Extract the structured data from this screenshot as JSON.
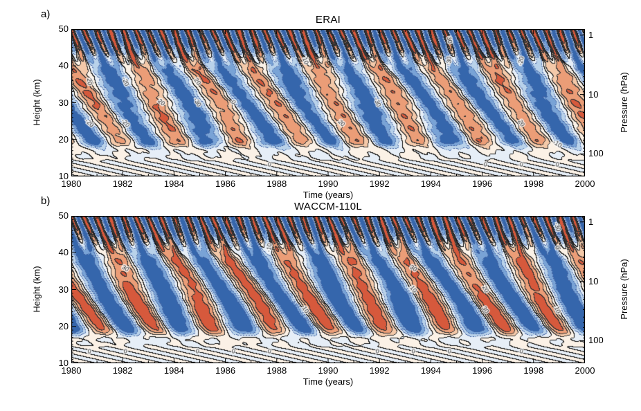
{
  "figure": {
    "background_color": "#ffffff",
    "panels": [
      {
        "id": "a",
        "corner_label": "a)",
        "title": "ERAI",
        "xlabel": "Time (years)",
        "ylabel_left": "Height (km)",
        "ylabel_right": "Pressure (hPa)",
        "x_tick_labels": [
          "1980",
          "1982",
          "1984",
          "1986",
          "1988",
          "1990",
          "1992",
          "1994",
          "1996",
          "1998",
          "2000"
        ],
        "y_tick_labels_km": [
          "10",
          "20",
          "30",
          "40",
          "50"
        ],
        "pressure_tick_labels_hpa": [
          "1",
          "10",
          "100"
        ]
      },
      {
        "id": "b",
        "corner_label": "b)",
        "title": "WACCM-110L",
        "xlabel": "Time (years)",
        "ylabel_left": "Height (km)",
        "ylabel_right": "Pressure (hPa)",
        "x_tick_labels": [
          "1980",
          "1982",
          "1984",
          "1986",
          "1988",
          "1990",
          "1992",
          "1994",
          "1996",
          "1998",
          "2000"
        ],
        "y_tick_labels_km": [
          "10",
          "20",
          "30",
          "40",
          "50"
        ],
        "pressure_tick_labels_hpa": [
          "1",
          "10",
          "100"
        ]
      }
    ]
  },
  "chart_data": [
    {
      "type": "heatmap",
      "subtype": "filled-contour",
      "title": "ERAI",
      "xlabel": "Time (years)",
      "ylabel": "Height (km)",
      "ylabel_right": "Pressure (hPa)",
      "x_range_years": [
        1980,
        2000
      ],
      "x_major_tick_step_years": 2,
      "y_range_km": [
        10,
        50
      ],
      "y_major_tick_step_km": 10,
      "pressure_axis": {
        "ticks_hpa": [
          1,
          10,
          100
        ],
        "log_scale": true,
        "scale_height_km": 7.0
      },
      "contour_levels": [
        -30,
        -20,
        -10,
        0,
        10,
        20,
        30
      ],
      "contour_label_values": [
        -30,
        -20,
        -10,
        0,
        10,
        20,
        30
      ],
      "fill_colors_neg_to_pos": [
        "#3566ac",
        "#79a3d6",
        "#b9d2ea",
        "#e6eef7",
        "#fbf1e6",
        "#f4c9a9",
        "#eb9d77",
        "#d6593c"
      ],
      "negative_contour_style": "dotted",
      "zero_positive_contour_style": "solid",
      "legend": "none",
      "grid": false,
      "description": "Equatorial zonal-mean zonal wind (m/s): alternating westerly (red/orange, positive) and easterly (blue, negative) regimes descending from ~40 km to ~17 km (QBO), with a faster semiannual oscillation above ~40 km.",
      "estimated_pattern": {
        "qbo_period_months": 28,
        "qbo_max_westerly_ms": 35,
        "qbo_max_easterly_ms": -38,
        "descent_rate_km_per_month": 1.0,
        "sao_region_above_km": 40,
        "sao_period_months": 6
      }
    },
    {
      "type": "heatmap",
      "subtype": "filled-contour",
      "title": "WACCM-110L",
      "xlabel": "Time (years)",
      "ylabel": "Height (km)",
      "ylabel_right": "Pressure (hPa)",
      "x_range_years": [
        1980,
        2000
      ],
      "x_major_tick_step_years": 2,
      "y_range_km": [
        10,
        50
      ],
      "y_major_tick_step_km": 10,
      "pressure_axis": {
        "ticks_hpa": [
          1,
          10,
          100
        ],
        "log_scale": true,
        "scale_height_km": 7.0
      },
      "contour_levels": [
        -30,
        -20,
        -10,
        0,
        10,
        20,
        30
      ],
      "contour_label_values": [
        -30,
        -20,
        -10,
        0,
        10,
        20,
        30
      ],
      "fill_colors_neg_to_pos": [
        "#3566ac",
        "#79a3d6",
        "#b9d2ea",
        "#e6eef7",
        "#fbf1e6",
        "#f4c9a9",
        "#eb9d77",
        "#d6593c"
      ],
      "negative_contour_style": "dotted",
      "zero_positive_contour_style": "solid",
      "legend": "none",
      "grid": false,
      "description": "Modelled equatorial zonal-mean zonal wind (m/s) from WACCM-110L: QBO-like alternating descending westerly/easterly regimes, broader westerly phases with cores exceeding +30 m/s near 24 km; semiannual oscillation above ~40 km.",
      "estimated_pattern": {
        "qbo_period_months": 27,
        "qbo_max_westerly_ms": 38,
        "qbo_max_easterly_ms": -38,
        "descent_rate_km_per_month": 1.0,
        "sao_region_above_km": 40,
        "sao_period_months": 6
      }
    }
  ]
}
